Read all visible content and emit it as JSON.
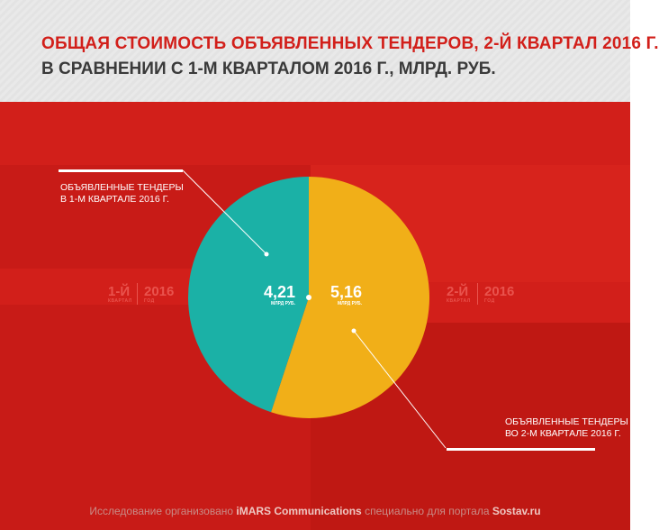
{
  "header": {
    "title": "ОБЩАЯ СТОИМОСТЬ ОБЪЯВЛЕННЫХ ТЕНДЕРОВ, 2-Й КВАРТАЛ 2016 Г.",
    "subtitle": "В СРАВНЕНИИ С 1-М КВАРТАЛОМ 2016 Г., МЛРД. РУБ."
  },
  "quarters": {
    "left": {
      "q": "1-Й",
      "q_small": "КВАРТАЛ",
      "year": "2016",
      "year_small": "ГОД"
    },
    "right": {
      "q": "2-Й",
      "q_small": "КВАРТАЛ",
      "year": "2016",
      "year_small": "ГОД"
    }
  },
  "callouts": {
    "q1_line1": "ОБЪЯВЛЕННЫЕ ТЕНДЕРЫ",
    "q1_line2": "В 1-М КВАРТАЛЕ 2016 Г.",
    "q2_line1": "ОБЪЯВЛЕННЫЕ ТЕНДЕРЫ",
    "q2_line2": "ВО 2-М КВАРТАЛЕ 2016 Г."
  },
  "chart_data": {
    "type": "pie",
    "unit": "МЛРД. РУБ.",
    "slices": [
      {
        "label": "ОБЪЯВЛЕННЫЕ ТЕНДЕРЫ В 1-М КВАРТАЛЕ 2016 Г.",
        "value": 4.21,
        "value_label": "4,21",
        "unit_label": "МЛРД РУБ.",
        "color": "#1bb1a6"
      },
      {
        "label": "ОБЪЯВЛЕННЫЕ ТЕНДЕРЫ ВО 2-М КВАРТАЛЕ 2016 Г.",
        "value": 5.16,
        "value_label": "5,16",
        "unit_label": "МЛРД РУБ.",
        "color": "#f1af18"
      }
    ]
  },
  "footer": {
    "pre": "Исследование организовано ",
    "org": "iMARS Communications",
    "mid": " специально для портала ",
    "site": "Sostav.ru"
  },
  "colors": {
    "background": "#d21f1a",
    "header_bg": "#e9e9e9",
    "title": "#d21f1a"
  }
}
